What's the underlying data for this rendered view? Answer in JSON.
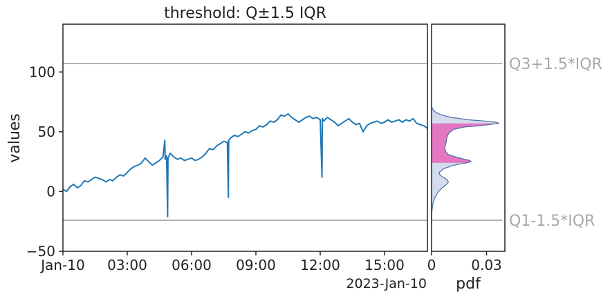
{
  "chart_data": [
    {
      "type": "line",
      "title": "threshold: Q±1.5 IQR",
      "xlabel": "",
      "ylabel": "values",
      "x_offset_label": "2023-Jan-10",
      "xlim": [
        "2023-01-10T00:00",
        "2023-01-10T17:00"
      ],
      "ylim": [
        -50,
        140
      ],
      "x_tick_labels": [
        "Jan-10",
        "03:00",
        "06:00",
        "09:00",
        "12:00",
        "15:00"
      ],
      "x_tick_values": [
        "2023-01-10T00:00",
        "2023-01-10T03:00",
        "2023-01-10T06:00",
        "2023-01-10T09:00",
        "2023-01-10T12:00",
        "2023-01-10T15:00"
      ],
      "y_tick_labels": [
        "−50",
        "0",
        "50",
        "100"
      ],
      "y_tick_values": [
        -50,
        0,
        50,
        100
      ],
      "grid": false,
      "series": [
        {
          "color": "#1f77b4",
          "points": [
            [
              "2023-01-10T00:00",
              2
            ],
            [
              "2023-01-10T00:10",
              0
            ],
            [
              "2023-01-10T00:20",
              4
            ],
            [
              "2023-01-10T00:30",
              6
            ],
            [
              "2023-01-10T00:40",
              3
            ],
            [
              "2023-01-10T00:50",
              5
            ],
            [
              "2023-01-10T01:00",
              9
            ],
            [
              "2023-01-10T01:10",
              8
            ],
            [
              "2023-01-10T01:20",
              10
            ],
            [
              "2023-01-10T01:30",
              12
            ],
            [
              "2023-01-10T01:40",
              11
            ],
            [
              "2023-01-10T01:50",
              10
            ],
            [
              "2023-01-10T02:00",
              8
            ],
            [
              "2023-01-10T02:10",
              10
            ],
            [
              "2023-01-10T02:20",
              9
            ],
            [
              "2023-01-10T02:30",
              12
            ],
            [
              "2023-01-10T02:40",
              14
            ],
            [
              "2023-01-10T02:50",
              13
            ],
            [
              "2023-01-10T03:00",
              16
            ],
            [
              "2023-01-10T03:10",
              19
            ],
            [
              "2023-01-10T03:20",
              21
            ],
            [
              "2023-01-10T03:30",
              22
            ],
            [
              "2023-01-10T03:40",
              24
            ],
            [
              "2023-01-10T03:50",
              28
            ],
            [
              "2023-01-10T04:00",
              25
            ],
            [
              "2023-01-10T04:10",
              22
            ],
            [
              "2023-01-10T04:20",
              24
            ],
            [
              "2023-01-10T04:30",
              26
            ],
            [
              "2023-01-10T04:40",
              29
            ],
            [
              "2023-01-10T04:45",
              43
            ],
            [
              "2023-01-10T04:46",
              27
            ],
            [
              "2023-01-10T04:50",
              30
            ],
            [
              "2023-01-10T04:53",
              -21
            ],
            [
              "2023-01-10T04:54",
              28
            ],
            [
              "2023-01-10T05:00",
              32
            ],
            [
              "2023-01-10T05:10",
              29
            ],
            [
              "2023-01-10T05:20",
              27
            ],
            [
              "2023-01-10T05:30",
              28
            ],
            [
              "2023-01-10T05:40",
              26
            ],
            [
              "2023-01-10T05:50",
              27
            ],
            [
              "2023-01-10T06:00",
              28
            ],
            [
              "2023-01-10T06:10",
              26
            ],
            [
              "2023-01-10T06:20",
              27
            ],
            [
              "2023-01-10T06:30",
              29
            ],
            [
              "2023-01-10T06:40",
              32
            ],
            [
              "2023-01-10T06:50",
              36
            ],
            [
              "2023-01-10T07:00",
              35
            ],
            [
              "2023-01-10T07:10",
              38
            ],
            [
              "2023-01-10T07:20",
              40
            ],
            [
              "2023-01-10T07:30",
              42
            ],
            [
              "2023-01-10T07:40",
              41
            ],
            [
              "2023-01-10T07:43",
              -5
            ],
            [
              "2023-01-10T07:44",
              43
            ],
            [
              "2023-01-10T07:50",
              45
            ],
            [
              "2023-01-10T08:00",
              47
            ],
            [
              "2023-01-10T08:10",
              46
            ],
            [
              "2023-01-10T08:20",
              48
            ],
            [
              "2023-01-10T08:30",
              50
            ],
            [
              "2023-01-10T08:40",
              49
            ],
            [
              "2023-01-10T08:50",
              51
            ],
            [
              "2023-01-10T09:00",
              52
            ],
            [
              "2023-01-10T09:10",
              55
            ],
            [
              "2023-01-10T09:20",
              54
            ],
            [
              "2023-01-10T09:30",
              56
            ],
            [
              "2023-01-10T09:40",
              59
            ],
            [
              "2023-01-10T09:50",
              58
            ],
            [
              "2023-01-10T10:00",
              60
            ],
            [
              "2023-01-10T10:10",
              64
            ],
            [
              "2023-01-10T10:20",
              63
            ],
            [
              "2023-01-10T10:30",
              65
            ],
            [
              "2023-01-10T10:40",
              62
            ],
            [
              "2023-01-10T10:50",
              60
            ],
            [
              "2023-01-10T11:00",
              58
            ],
            [
              "2023-01-10T11:10",
              60
            ],
            [
              "2023-01-10T11:20",
              62
            ],
            [
              "2023-01-10T11:30",
              63
            ],
            [
              "2023-01-10T11:40",
              61
            ],
            [
              "2023-01-10T11:50",
              62
            ],
            [
              "2023-01-10T12:00",
              60
            ],
            [
              "2023-01-10T12:05",
              12
            ],
            [
              "2023-01-10T12:06",
              61
            ],
            [
              "2023-01-10T12:10",
              59
            ],
            [
              "2023-01-10T12:20",
              62
            ],
            [
              "2023-01-10T12:30",
              60
            ],
            [
              "2023-01-10T12:40",
              58
            ],
            [
              "2023-01-10T12:50",
              55
            ],
            [
              "2023-01-10T13:00",
              57
            ],
            [
              "2023-01-10T13:10",
              59
            ],
            [
              "2023-01-10T13:20",
              61
            ],
            [
              "2023-01-10T13:30",
              58
            ],
            [
              "2023-01-10T13:40",
              56
            ],
            [
              "2023-01-10T13:50",
              57
            ],
            [
              "2023-01-10T14:00",
              50
            ],
            [
              "2023-01-10T14:10",
              55
            ],
            [
              "2023-01-10T14:20",
              57
            ],
            [
              "2023-01-10T14:30",
              58
            ],
            [
              "2023-01-10T14:40",
              59
            ],
            [
              "2023-01-10T14:50",
              57
            ],
            [
              "2023-01-10T15:00",
              58
            ],
            [
              "2023-01-10T15:10",
              60
            ],
            [
              "2023-01-10T15:20",
              58
            ],
            [
              "2023-01-10T15:30",
              59
            ],
            [
              "2023-01-10T15:40",
              60
            ],
            [
              "2023-01-10T15:50",
              58
            ],
            [
              "2023-01-10T16:00",
              60
            ],
            [
              "2023-01-10T16:10",
              59
            ],
            [
              "2023-01-10T16:20",
              61
            ],
            [
              "2023-01-10T16:30",
              57
            ],
            [
              "2023-01-10T16:40",
              56
            ],
            [
              "2023-01-10T16:50",
              55
            ],
            [
              "2023-01-10T16:59",
              53
            ]
          ]
        }
      ],
      "threshold_lines": [
        {
          "label": "Q3+1.5*IQR",
          "y": 107,
          "color": "#999999"
        },
        {
          "label": "Q1-1.5*IQR",
          "y": -24,
          "color": "#999999"
        }
      ]
    },
    {
      "type": "area",
      "orientation": "horizontal",
      "xlabel": "pdf",
      "xlim": [
        0,
        0.04
      ],
      "ylim": [
        -50,
        140
      ],
      "x_tick_labels": [
        "0",
        "0.03"
      ],
      "x_tick_values": [
        0,
        0.03
      ],
      "fill_color": "#d3dcec",
      "edge_color": "#4a6fa5",
      "highlight_color": "#e377c2",
      "highlight_range": [
        24,
        57
      ],
      "density": [
        [
          -28,
          0
        ],
        [
          -20,
          0
        ],
        [
          -15,
          0.0003
        ],
        [
          -10,
          0.0008
        ],
        [
          -6,
          0.0016
        ],
        [
          -3,
          0.0025
        ],
        [
          0,
          0.0038
        ],
        [
          3,
          0.0058
        ],
        [
          6,
          0.0082
        ],
        [
          8,
          0.0092
        ],
        [
          10,
          0.0085
        ],
        [
          12,
          0.0062
        ],
        [
          14,
          0.0045
        ],
        [
          16,
          0.0042
        ],
        [
          19,
          0.0065
        ],
        [
          22,
          0.012
        ],
        [
          24,
          0.019
        ],
        [
          25,
          0.0215
        ],
        [
          26,
          0.021
        ],
        [
          27,
          0.018
        ],
        [
          29,
          0.013
        ],
        [
          31,
          0.009
        ],
        [
          34,
          0.0075
        ],
        [
          37,
          0.0072
        ],
        [
          40,
          0.0078
        ],
        [
          43,
          0.0082
        ],
        [
          46,
          0.0085
        ],
        [
          49,
          0.0095
        ],
        [
          52,
          0.012
        ],
        [
          54,
          0.018
        ],
        [
          55,
          0.026
        ],
        [
          57,
          0.037
        ],
        [
          58,
          0.035
        ],
        [
          59,
          0.029
        ],
        [
          60,
          0.02
        ],
        [
          62,
          0.011
        ],
        [
          64,
          0.0055
        ],
        [
          66,
          0.0025
        ],
        [
          68,
          0.001
        ],
        [
          70,
          0.0003
        ],
        [
          72,
          0
        ]
      ],
      "threshold_lines": [
        {
          "label": "Q3+1.5*IQR",
          "y": 107,
          "color": "#999999"
        },
        {
          "label": "Q1-1.5*IQR",
          "y": -24,
          "color": "#999999"
        }
      ]
    }
  ]
}
